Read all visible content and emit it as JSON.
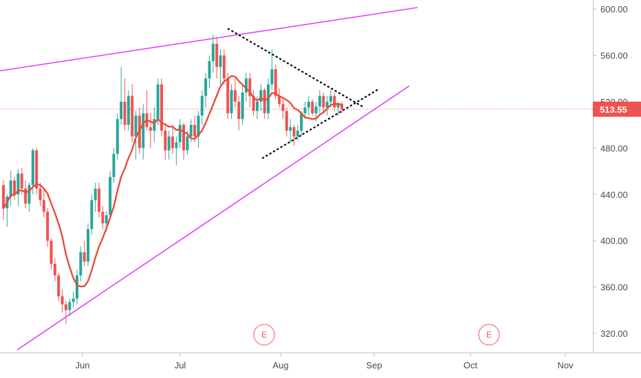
{
  "chart_data": {
    "type": "candlestick",
    "y_ticks": [
      "600.00",
      "560.00",
      "520.00",
      "480.00",
      "440.00",
      "400.00",
      "360.00",
      "320.00"
    ],
    "y_tick_values": [
      600,
      560,
      520,
      480,
      440,
      400,
      360,
      320
    ],
    "x_ticks": [
      "Jun",
      "Jul",
      "Aug",
      "Sep",
      "Oct",
      "Nov"
    ],
    "ylim": [
      305,
      608
    ],
    "last_price": "513.55",
    "last_price_value": 513.55,
    "colors": {
      "up": "#26a69a",
      "down": "#ef5350",
      "ma": "#e84b3c",
      "trendline": "#e040fb",
      "pattern": "#000000"
    },
    "earnings_markers": [
      {
        "label": "E",
        "date": "Aug"
      },
      {
        "label": "E",
        "date": "Oct"
      }
    ],
    "candles": [
      {
        "o": 448,
        "h": 452,
        "l": 418,
        "c": 428
      },
      {
        "o": 428,
        "h": 440,
        "l": 412,
        "c": 438
      },
      {
        "o": 438,
        "h": 460,
        "l": 430,
        "c": 452
      },
      {
        "o": 452,
        "h": 455,
        "l": 435,
        "c": 440
      },
      {
        "o": 440,
        "h": 462,
        "l": 430,
        "c": 458
      },
      {
        "o": 458,
        "h": 463,
        "l": 440,
        "c": 445
      },
      {
        "o": 445,
        "h": 452,
        "l": 428,
        "c": 432
      },
      {
        "o": 432,
        "h": 450,
        "l": 425,
        "c": 448
      },
      {
        "o": 448,
        "h": 480,
        "l": 440,
        "c": 478
      },
      {
        "o": 478,
        "h": 480,
        "l": 440,
        "c": 445
      },
      {
        "o": 445,
        "h": 450,
        "l": 430,
        "c": 435
      },
      {
        "o": 435,
        "h": 445,
        "l": 420,
        "c": 425
      },
      {
        "o": 425,
        "h": 428,
        "l": 395,
        "c": 400
      },
      {
        "o": 400,
        "h": 402,
        "l": 375,
        "c": 380
      },
      {
        "o": 380,
        "h": 385,
        "l": 365,
        "c": 370
      },
      {
        "o": 370,
        "h": 372,
        "l": 348,
        "c": 352
      },
      {
        "o": 352,
        "h": 358,
        "l": 338,
        "c": 345
      },
      {
        "o": 345,
        "h": 348,
        "l": 328,
        "c": 340
      },
      {
        "o": 340,
        "h": 350,
        "l": 335,
        "c": 347
      },
      {
        "o": 347,
        "h": 356,
        "l": 342,
        "c": 350
      },
      {
        "o": 350,
        "h": 375,
        "l": 345,
        "c": 370
      },
      {
        "o": 370,
        "h": 395,
        "l": 365,
        "c": 390
      },
      {
        "o": 390,
        "h": 400,
        "l": 378,
        "c": 382
      },
      {
        "o": 382,
        "h": 415,
        "l": 378,
        "c": 410
      },
      {
        "o": 410,
        "h": 440,
        "l": 405,
        "c": 435
      },
      {
        "o": 435,
        "h": 450,
        "l": 425,
        "c": 445
      },
      {
        "o": 445,
        "h": 450,
        "l": 420,
        "c": 425
      },
      {
        "o": 425,
        "h": 430,
        "l": 410,
        "c": 415
      },
      {
        "o": 415,
        "h": 425,
        "l": 408,
        "c": 422
      },
      {
        "o": 422,
        "h": 460,
        "l": 418,
        "c": 455
      },
      {
        "o": 455,
        "h": 480,
        "l": 450,
        "c": 475
      },
      {
        "o": 475,
        "h": 510,
        "l": 470,
        "c": 505
      },
      {
        "o": 505,
        "h": 550,
        "l": 500,
        "c": 520
      },
      {
        "o": 520,
        "h": 540,
        "l": 495,
        "c": 500
      },
      {
        "o": 500,
        "h": 530,
        "l": 495,
        "c": 525
      },
      {
        "o": 525,
        "h": 535,
        "l": 485,
        "c": 490
      },
      {
        "o": 490,
        "h": 512,
        "l": 470,
        "c": 508
      },
      {
        "o": 508,
        "h": 515,
        "l": 475,
        "c": 480
      },
      {
        "o": 480,
        "h": 518,
        "l": 470,
        "c": 510
      },
      {
        "o": 510,
        "h": 530,
        "l": 495,
        "c": 498
      },
      {
        "o": 498,
        "h": 510,
        "l": 480,
        "c": 495
      },
      {
        "o": 495,
        "h": 515,
        "l": 485,
        "c": 505
      },
      {
        "o": 505,
        "h": 540,
        "l": 500,
        "c": 535
      },
      {
        "o": 535,
        "h": 540,
        "l": 490,
        "c": 495
      },
      {
        "o": 495,
        "h": 500,
        "l": 470,
        "c": 478
      },
      {
        "o": 478,
        "h": 495,
        "l": 470,
        "c": 490
      },
      {
        "o": 490,
        "h": 500,
        "l": 475,
        "c": 480
      },
      {
        "o": 480,
        "h": 490,
        "l": 465,
        "c": 485
      },
      {
        "o": 485,
        "h": 505,
        "l": 480,
        "c": 500
      },
      {
        "o": 500,
        "h": 502,
        "l": 470,
        "c": 478
      },
      {
        "o": 478,
        "h": 495,
        "l": 474,
        "c": 490
      },
      {
        "o": 490,
        "h": 505,
        "l": 485,
        "c": 500
      },
      {
        "o": 500,
        "h": 508,
        "l": 485,
        "c": 490
      },
      {
        "o": 490,
        "h": 512,
        "l": 480,
        "c": 508
      },
      {
        "o": 508,
        "h": 530,
        "l": 500,
        "c": 525
      },
      {
        "o": 525,
        "h": 545,
        "l": 515,
        "c": 540
      },
      {
        "o": 540,
        "h": 560,
        "l": 532,
        "c": 555
      },
      {
        "o": 555,
        "h": 578,
        "l": 545,
        "c": 570
      },
      {
        "o": 570,
        "h": 575,
        "l": 540,
        "c": 550
      },
      {
        "o": 550,
        "h": 565,
        "l": 535,
        "c": 560
      },
      {
        "o": 560,
        "h": 565,
        "l": 535,
        "c": 540
      },
      {
        "o": 540,
        "h": 545,
        "l": 505,
        "c": 510
      },
      {
        "o": 510,
        "h": 535,
        "l": 505,
        "c": 530
      },
      {
        "o": 530,
        "h": 540,
        "l": 515,
        "c": 520
      },
      {
        "o": 520,
        "h": 525,
        "l": 495,
        "c": 505
      },
      {
        "o": 505,
        "h": 535,
        "l": 500,
        "c": 528
      },
      {
        "o": 528,
        "h": 545,
        "l": 520,
        "c": 540
      },
      {
        "o": 540,
        "h": 545,
        "l": 515,
        "c": 525
      },
      {
        "o": 525,
        "h": 530,
        "l": 508,
        "c": 512
      },
      {
        "o": 512,
        "h": 525,
        "l": 505,
        "c": 520
      },
      {
        "o": 520,
        "h": 535,
        "l": 512,
        "c": 530
      },
      {
        "o": 530,
        "h": 532,
        "l": 505,
        "c": 510
      },
      {
        "o": 510,
        "h": 540,
        "l": 505,
        "c": 535
      },
      {
        "o": 535,
        "h": 565,
        "l": 530,
        "c": 548
      },
      {
        "o": 548,
        "h": 552,
        "l": 522,
        "c": 525
      },
      {
        "o": 525,
        "h": 532,
        "l": 515,
        "c": 518
      },
      {
        "o": 518,
        "h": 522,
        "l": 505,
        "c": 512
      },
      {
        "o": 512,
        "h": 515,
        "l": 490,
        "c": 495
      },
      {
        "o": 495,
        "h": 505,
        "l": 485,
        "c": 498
      },
      {
        "o": 498,
        "h": 500,
        "l": 482,
        "c": 490
      },
      {
        "o": 490,
        "h": 500,
        "l": 486,
        "c": 495
      },
      {
        "o": 495,
        "h": 512,
        "l": 490,
        "c": 510
      },
      {
        "o": 510,
        "h": 520,
        "l": 505,
        "c": 515
      },
      {
        "o": 515,
        "h": 525,
        "l": 508,
        "c": 520
      },
      {
        "o": 520,
        "h": 522,
        "l": 508,
        "c": 510
      },
      {
        "o": 510,
        "h": 520,
        "l": 503,
        "c": 516
      },
      {
        "o": 516,
        "h": 530,
        "l": 510,
        "c": 525
      },
      {
        "o": 525,
        "h": 528,
        "l": 510,
        "c": 515
      },
      {
        "o": 515,
        "h": 525,
        "l": 508,
        "c": 520
      },
      {
        "o": 520,
        "h": 530,
        "l": 515,
        "c": 525
      },
      {
        "o": 525,
        "h": 528,
        "l": 512,
        "c": 515
      },
      {
        "o": 515,
        "h": 520,
        "l": 508,
        "c": 518
      },
      {
        "o": 518,
        "h": 520,
        "l": 510,
        "c": 513.55
      }
    ]
  }
}
